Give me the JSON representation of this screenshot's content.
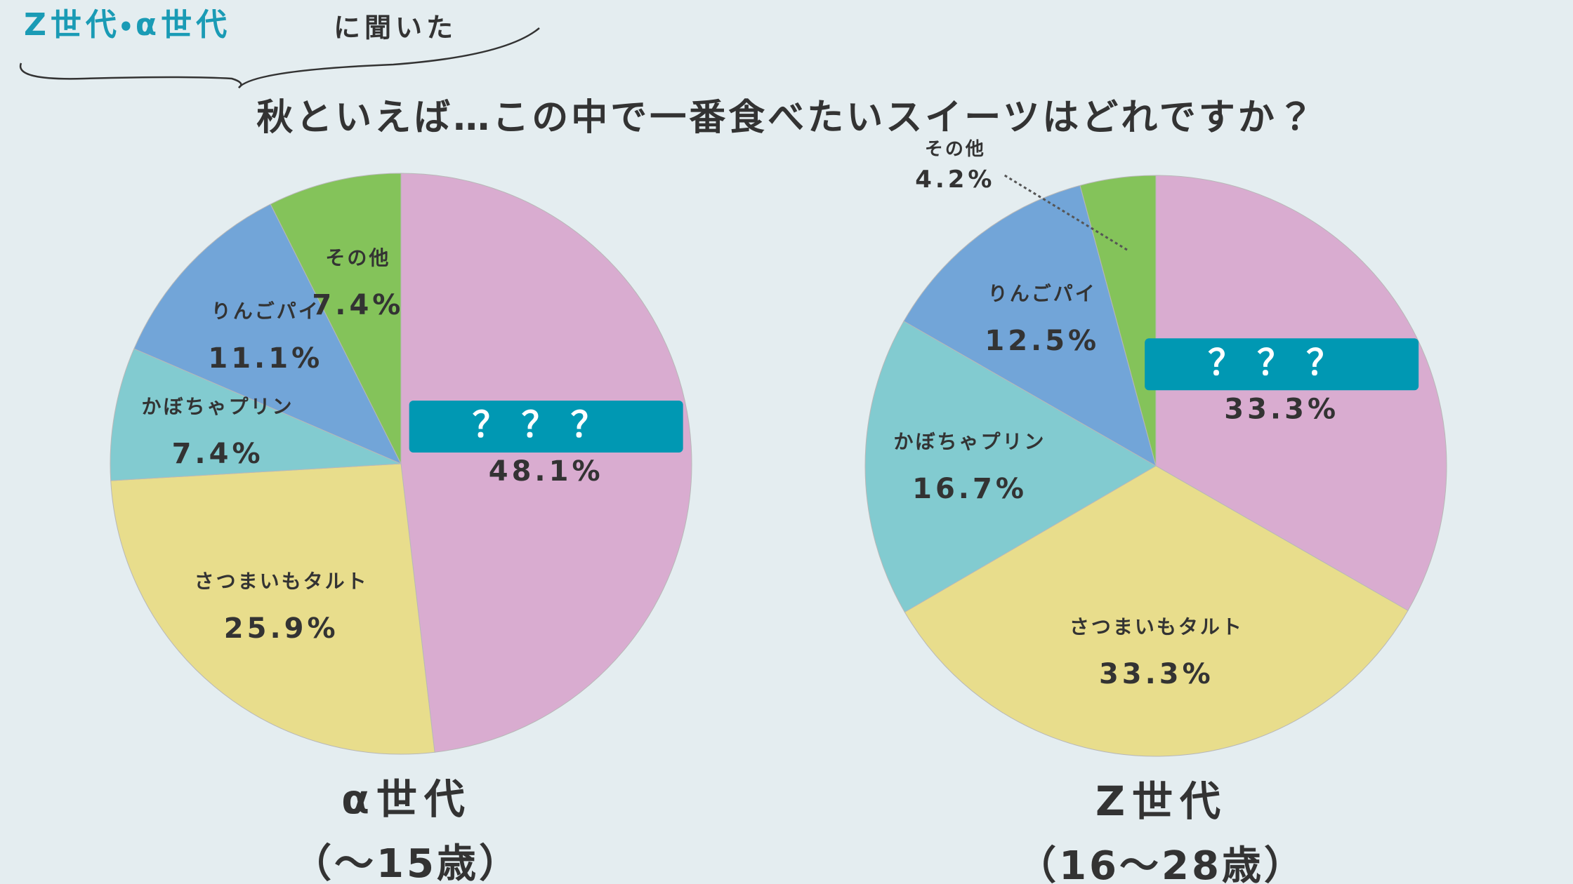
{
  "header": {
    "tag_highlight": "Z世代・α世代",
    "tag_rest": "に聞いた",
    "title": "秋といえば…この中で一番食べたいスイーツはどれですか？"
  },
  "chart_data": [
    {
      "type": "pie",
      "title": "α世代",
      "subtitle": "（〜15歳）",
      "categories": [
        "？？？",
        "さつまいもタルト",
        "かぼちゃプリン",
        "りんごパイ",
        "その他"
      ],
      "values": [
        48.1,
        25.9,
        7.4,
        11.1,
        7.4
      ],
      "value_labels": [
        "48.1%",
        "25.9%",
        "7.4%",
        "11.1%",
        "7.4%"
      ],
      "colors": [
        "#d9acd0",
        "#e8dd8c",
        "#82cbd0",
        "#72a5d8",
        "#84c35a"
      ]
    },
    {
      "type": "pie",
      "title": "Z世代",
      "subtitle": "（16〜28歳）",
      "categories": [
        "？？？",
        "さつまいもタルト",
        "かぼちゃプリン",
        "りんごパイ",
        "その他"
      ],
      "values": [
        33.3,
        33.3,
        16.7,
        12.5,
        4.2
      ],
      "value_labels": [
        "33.3%",
        "33.3%",
        "16.7%",
        "12.5%",
        "4.2%"
      ],
      "colors": [
        "#d9acd0",
        "#e8dd8c",
        "#82cbd0",
        "#72a5d8",
        "#84c35a"
      ]
    }
  ]
}
